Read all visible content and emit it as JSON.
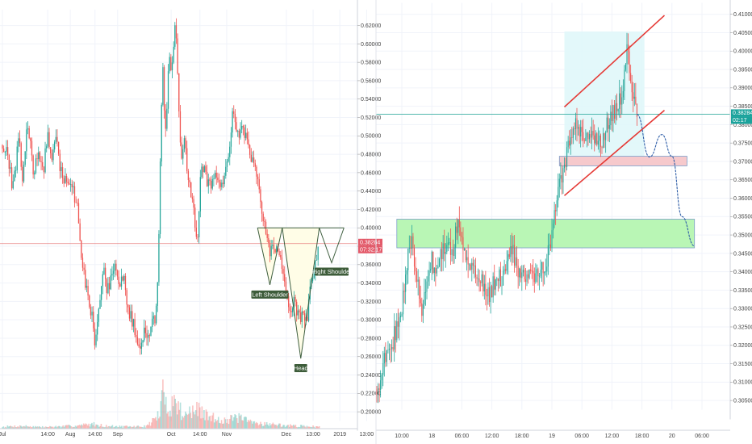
{
  "colors": {
    "up": "#26a69a",
    "down": "#ef5350",
    "price_line": "#e57373",
    "channel": "#e53935",
    "forecast": "#2f5ea8",
    "support_zone": "#b9f6b5",
    "support_border": "#7a9cc8",
    "resistance_zone": "#f6c9cc",
    "channel_fill": "#e0f7fa",
    "hs_fill": "#fffde7",
    "hs_line": "#3f5f3f",
    "label_bg": "#3d5c3a",
    "price_tag": "#e35a6a",
    "timer_tag": "#1ba39c"
  },
  "chart_data": [
    {
      "type": "candlestick",
      "ylim": [
        0.19,
        0.632
      ],
      "x_ticks": [
        {
          "label": "Jul",
          "d": 0
        },
        {
          "label": "14:00",
          "d": 22
        },
        {
          "label": "Aug",
          "d": 33
        },
        {
          "label": "14:00",
          "d": 45
        },
        {
          "label": "Sep",
          "d": 56
        },
        {
          "label": "Oct",
          "d": 82
        },
        {
          "label": "14:00",
          "d": 96
        },
        {
          "label": "Nov",
          "d": 109
        },
        {
          "label": "Dec",
          "d": 138
        },
        {
          "label": "13:00",
          "d": 151
        },
        {
          "label": "2019",
          "d": 164
        },
        {
          "label": "13:00",
          "d": 177
        }
      ],
      "y_ticks": [
        "0.62000",
        "0.60000",
        "0.58000",
        "0.56000",
        "0.54000",
        "0.52000",
        "0.50000",
        "0.48000",
        "0.46000",
        "0.44000",
        "0.42000",
        "0.40000",
        "0.38000",
        "0.36000",
        "0.34000",
        "0.32000",
        "0.30000",
        "0.28000",
        "0.26000",
        "0.24000",
        "0.22000",
        "0.20000"
      ],
      "y_tick_values": [
        0.62,
        0.6,
        0.58,
        0.56,
        0.54,
        0.52,
        0.5,
        0.48,
        0.46,
        0.44,
        0.42,
        0.4,
        0.38,
        0.36,
        0.34,
        0.32,
        0.3,
        0.28,
        0.26,
        0.24,
        0.22,
        0.2
      ],
      "last_price": 0.38284,
      "last_price_label": "0.38284",
      "timer_label": "07:32:17",
      "pattern": {
        "neckline": [
          [
            124,
            0.4
          ],
          [
            166,
            0.4
          ]
        ],
        "left_shoulder": [
          [
            124,
            0.4
          ],
          [
            130,
            0.338
          ],
          [
            136,
            0.4
          ]
        ],
        "head": [
          [
            136,
            0.4
          ],
          [
            145,
            0.258
          ],
          [
            154,
            0.4
          ]
        ],
        "right_shoulder": [
          [
            154,
            0.4
          ],
          [
            160,
            0.362
          ],
          [
            166,
            0.4
          ]
        ],
        "labels": {
          "left_shoulder": "Left Shoulder",
          "head": "Head",
          "right_shoulder": "Right Shoulder"
        }
      },
      "anchors": [
        [
          0,
          0.49
        ],
        [
          3,
          0.475
        ],
        [
          5,
          0.44
        ],
        [
          8,
          0.5
        ],
        [
          10,
          0.45
        ],
        [
          12,
          0.52
        ],
        [
          15,
          0.46
        ],
        [
          17,
          0.48
        ],
        [
          20,
          0.465
        ],
        [
          22,
          0.5
        ],
        [
          24,
          0.475
        ],
        [
          26,
          0.5
        ],
        [
          28,
          0.46
        ],
        [
          30,
          0.455
        ],
        [
          32,
          0.445
        ],
        [
          34,
          0.44
        ],
        [
          36,
          0.43
        ],
        [
          38,
          0.38
        ],
        [
          40,
          0.34
        ],
        [
          42,
          0.32
        ],
        [
          44,
          0.3
        ],
        [
          45,
          0.27
        ],
        [
          47,
          0.31
        ],
        [
          49,
          0.36
        ],
        [
          51,
          0.33
        ],
        [
          53,
          0.345
        ],
        [
          55,
          0.36
        ],
        [
          57,
          0.34
        ],
        [
          59,
          0.345
        ],
        [
          61,
          0.31
        ],
        [
          63,
          0.3
        ],
        [
          65,
          0.285
        ],
        [
          67,
          0.27
        ],
        [
          69,
          0.29
        ],
        [
          71,
          0.28
        ],
        [
          73,
          0.3
        ],
        [
          74,
          0.3
        ],
        [
          75,
          0.32
        ],
        [
          76,
          0.39
        ],
        [
          77,
          0.5
        ],
        [
          78,
          0.58
        ],
        [
          79,
          0.5
        ],
        [
          80,
          0.53
        ],
        [
          81,
          0.6
        ],
        [
          82,
          0.56
        ],
        [
          83,
          0.59
        ],
        [
          84,
          0.62
        ],
        [
          85,
          0.58
        ],
        [
          86,
          0.52
        ],
        [
          87,
          0.47
        ],
        [
          88,
          0.5
        ],
        [
          90,
          0.46
        ],
        [
          92,
          0.43
        ],
        [
          94,
          0.4
        ],
        [
          95,
          0.38
        ],
        [
          96,
          0.46
        ],
        [
          98,
          0.47
        ],
        [
          100,
          0.445
        ],
        [
          102,
          0.45
        ],
        [
          104,
          0.455
        ],
        [
          106,
          0.44
        ],
        [
          108,
          0.46
        ],
        [
          110,
          0.48
        ],
        [
          112,
          0.53
        ],
        [
          114,
          0.51
        ],
        [
          115,
          0.49
        ],
        [
          116,
          0.52
        ],
        [
          118,
          0.5
        ],
        [
          120,
          0.48
        ],
        [
          122,
          0.47
        ],
        [
          124,
          0.45
        ],
        [
          126,
          0.42
        ],
        [
          128,
          0.4
        ],
        [
          130,
          0.37
        ],
        [
          131,
          0.39
        ],
        [
          132,
          0.37
        ],
        [
          134,
          0.38
        ],
        [
          136,
          0.35
        ],
        [
          138,
          0.33
        ],
        [
          140,
          0.31
        ],
        [
          142,
          0.32
        ],
        [
          144,
          0.3
        ],
        [
          146,
          0.31
        ],
        [
          148,
          0.3
        ],
        [
          150,
          0.34
        ],
        [
          152,
          0.36
        ],
        [
          154,
          0.383
        ]
      ],
      "volume_anchors": [
        [
          0,
          0.06
        ],
        [
          10,
          0.08
        ],
        [
          20,
          0.05
        ],
        [
          30,
          0.07
        ],
        [
          38,
          0.1
        ],
        [
          44,
          0.14
        ],
        [
          50,
          0.08
        ],
        [
          60,
          0.06
        ],
        [
          70,
          0.07
        ],
        [
          76,
          0.4
        ],
        [
          78,
          1.0
        ],
        [
          80,
          0.7
        ],
        [
          84,
          0.8
        ],
        [
          88,
          0.45
        ],
        [
          96,
          0.55
        ],
        [
          100,
          0.35
        ],
        [
          110,
          0.25
        ],
        [
          114,
          0.35
        ],
        [
          120,
          0.2
        ],
        [
          128,
          0.15
        ],
        [
          136,
          0.1
        ],
        [
          144,
          0.08
        ],
        [
          154,
          0.06
        ]
      ]
    },
    {
      "type": "candlestick",
      "ylim": [
        0.3025,
        0.4118
      ],
      "x_ticks": [
        {
          "label": "10:00",
          "d": 5
        },
        {
          "label": "18",
          "d": 11
        },
        {
          "label": "06:00",
          "d": 17
        },
        {
          "label": "12:00",
          "d": 23
        },
        {
          "label": "18:00",
          "d": 29
        },
        {
          "label": "19",
          "d": 35
        },
        {
          "label": "06:00",
          "d": 41
        },
        {
          "label": "12:00",
          "d": 47
        },
        {
          "label": "18:00",
          "d": 53
        },
        {
          "label": "20",
          "d": 59
        },
        {
          "label": "06:00",
          "d": 65
        }
      ],
      "y_ticks": [
        "0.41000",
        "0.40500",
        "0.40000",
        "0.39500",
        "0.39000",
        "0.38500",
        "0.38000",
        "0.37500",
        "0.37000",
        "0.36500",
        "0.36000",
        "0.35500",
        "0.35000",
        "0.34500",
        "0.34000",
        "0.33500",
        "0.33000",
        "0.32500",
        "0.32000",
        "0.31500",
        "0.31000",
        "0.30500"
      ],
      "y_tick_values": [
        0.41,
        0.405,
        0.4,
        0.395,
        0.39,
        0.385,
        0.38,
        0.375,
        0.37,
        0.365,
        0.36,
        0.355,
        0.35,
        0.345,
        0.34,
        0.335,
        0.33,
        0.325,
        0.32,
        0.315,
        0.31,
        0.305
      ],
      "last_price": 0.38284,
      "last_price_label": "0.38284",
      "timer_label": "02:17",
      "support_zone": [
        0.3465,
        0.3543
      ],
      "resistance_zone": [
        0.3688,
        0.3714
      ],
      "channel": {
        "upper": [
          [
            37.5,
            0.3848
          ],
          [
            57.5,
            0.4097
          ]
        ],
        "lower": [
          [
            37.5,
            0.3607
          ],
          [
            57.5,
            0.3839
          ]
        ]
      },
      "forecast": [
        [
          52,
          0.3828
        ],
        [
          54.5,
          0.3712
        ],
        [
          57,
          0.3773
        ],
        [
          59,
          0.3714
        ],
        [
          61,
          0.355
        ],
        [
          63.5,
          0.347
        ]
      ],
      "anchors": [
        [
          0,
          0.308
        ],
        [
          1,
          0.313
        ],
        [
          2,
          0.318
        ],
        [
          3,
          0.32
        ],
        [
          4,
          0.325
        ],
        [
          5,
          0.33
        ],
        [
          6,
          0.342
        ],
        [
          7,
          0.349
        ],
        [
          8,
          0.338
        ],
        [
          9,
          0.33
        ],
        [
          10,
          0.338
        ],
        [
          11,
          0.343
        ],
        [
          12,
          0.339
        ],
        [
          13,
          0.345
        ],
        [
          14,
          0.349
        ],
        [
          15,
          0.345
        ],
        [
          16,
          0.353
        ],
        [
          17,
          0.348
        ],
        [
          18,
          0.345
        ],
        [
          19,
          0.342
        ],
        [
          20,
          0.34
        ],
        [
          21,
          0.338
        ],
        [
          22,
          0.333
        ],
        [
          23,
          0.335
        ],
        [
          24,
          0.34
        ],
        [
          25,
          0.338
        ],
        [
          26,
          0.344
        ],
        [
          27,
          0.346
        ],
        [
          28,
          0.342
        ],
        [
          29,
          0.339
        ],
        [
          30,
          0.337
        ],
        [
          31,
          0.34
        ],
        [
          32,
          0.338
        ],
        [
          33,
          0.342
        ],
        [
          34,
          0.343
        ],
        [
          35,
          0.35
        ],
        [
          36,
          0.362
        ],
        [
          37,
          0.367
        ],
        [
          38,
          0.372
        ],
        [
          39,
          0.378
        ],
        [
          40,
          0.38
        ],
        [
          41,
          0.378
        ],
        [
          42,
          0.376
        ],
        [
          43,
          0.379
        ],
        [
          44,
          0.374
        ],
        [
          45,
          0.376
        ],
        [
          46,
          0.38
        ],
        [
          47,
          0.383
        ],
        [
          48,
          0.385
        ],
        [
          49,
          0.388
        ],
        [
          50,
          0.3998
        ],
        [
          51,
          0.39
        ],
        [
          52,
          0.3828
        ]
      ]
    }
  ]
}
